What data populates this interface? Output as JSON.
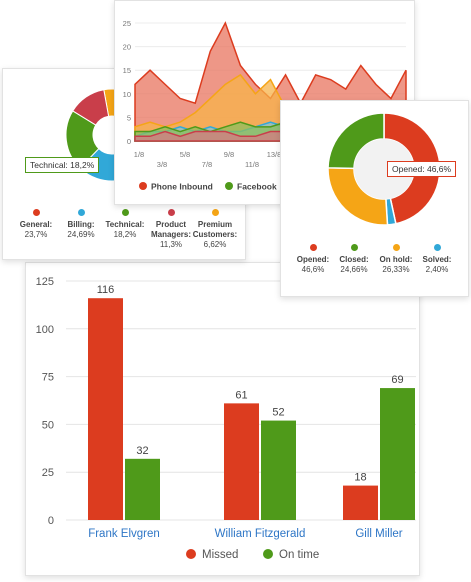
{
  "colors": {
    "red": "#dc3c1f",
    "green": "#4f9a1a",
    "orange": "#f5a516",
    "blue": "#31a8d8",
    "crimson": "#c93e4a",
    "name_link": "#2e76c6"
  },
  "left_pie": {
    "tooltip": "Technical: 18,2%",
    "slices": [
      {
        "label": "General:",
        "value": 23.7,
        "color": "#dc3c1f"
      },
      {
        "label": "Billing:",
        "value": 24.69,
        "color": "#31a8d8"
      },
      {
        "label": "Technical:",
        "value": 18.2,
        "color": "#4f9a1a"
      },
      {
        "label": "Product Managers:",
        "value": 11.3,
        "color": "#c93e4a"
      },
      {
        "label": "Premium Customers:",
        "value": 6.62,
        "color": "#f5a516"
      }
    ],
    "legend": [
      {
        "l1": "General:",
        "l2": "23,7%",
        "l3": "",
        "color": "#dc3c1f"
      },
      {
        "l1": "Billing:",
        "l2": "24,69%",
        "l3": "",
        "color": "#31a8d8"
      },
      {
        "l1": "Technical:",
        "l2": "18,2%",
        "l3": "",
        "color": "#4f9a1a"
      },
      {
        "l1": "Product",
        "l2": "Managers:",
        "l3": "11,3%",
        "color": "#c93e4a"
      },
      {
        "l1": "Premium",
        "l2": "Customers:",
        "l3": "6,62%",
        "color": "#f5a516"
      }
    ]
  },
  "area_chart": {
    "y_ticks": [
      "25",
      "20",
      "15",
      "10",
      "5",
      "0"
    ],
    "x_ticks_top": [
      "1/8",
      "5/8",
      "9/8",
      "13/8"
    ],
    "x_ticks_bottom": [
      "3/8",
      "7/8",
      "11/8"
    ],
    "legend": [
      {
        "label": "Phone Inbound",
        "color": "#dc3c1f"
      },
      {
        "label": "Facebook",
        "color": "#4f9a1a"
      }
    ]
  },
  "right_donut": {
    "tooltip": "Opened: 46,6%",
    "legend": [
      {
        "l1": "Opened:",
        "l2": "46,6%",
        "color": "#dc3c1f"
      },
      {
        "l1": "Closed:",
        "l2": "24,66%",
        "color": "#4f9a1a"
      },
      {
        "l1": "On hold:",
        "l2": "26,33%",
        "color": "#f5a516"
      },
      {
        "l1": "Solved:",
        "l2": "2,40%",
        "color": "#31a8d8"
      }
    ]
  },
  "chart_data": {
    "type": "bar",
    "categories": [
      "Frank Elvgren",
      "William Fitzgerald",
      "Gill Miller"
    ],
    "series": [
      {
        "name": "Missed",
        "color": "#dc3c1f",
        "values": [
          116,
          61,
          18
        ]
      },
      {
        "name": "On time",
        "color": "#4f9a1a",
        "values": [
          32,
          52,
          69
        ]
      }
    ],
    "y_ticks": [
      "125",
      "100",
      "75",
      "50",
      "25",
      "0"
    ],
    "ylim": [
      0,
      125
    ],
    "grid": true,
    "legend_position": "bottom"
  }
}
